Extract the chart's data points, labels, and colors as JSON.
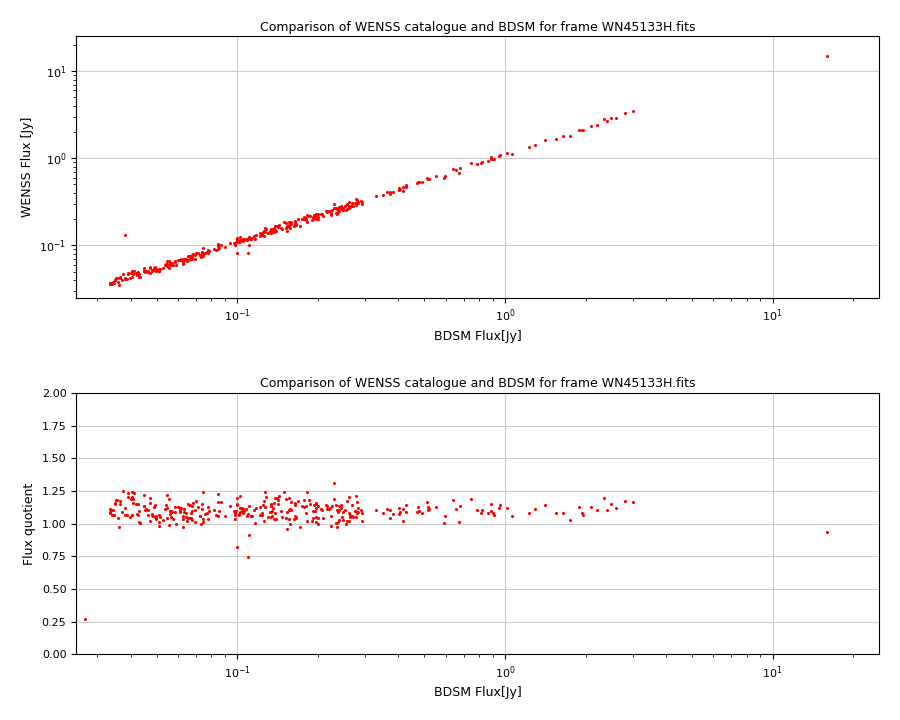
{
  "title": "Comparison of WENSS catalogue and BDSM for frame WN45133H.fits",
  "xlabel1": "BDSM Flux[Jy]",
  "ylabel1": "WENSS Flux [Jy]",
  "xlabel2": "BDSM Flux[Jy]",
  "ylabel2": "Flux quotient",
  "dot_color": "#ff0000",
  "dot_size": 5,
  "background_color": "#ffffff",
  "grid_color": "#cccccc",
  "ylim2": [
    0.0,
    2.0
  ],
  "yticks2": [
    0.0,
    0.25,
    0.5,
    0.75,
    1.0,
    1.25,
    1.5,
    1.75,
    2.0
  ],
  "seed": 42,
  "figsize": [
    9.0,
    7.2
  ],
  "dpi": 100
}
